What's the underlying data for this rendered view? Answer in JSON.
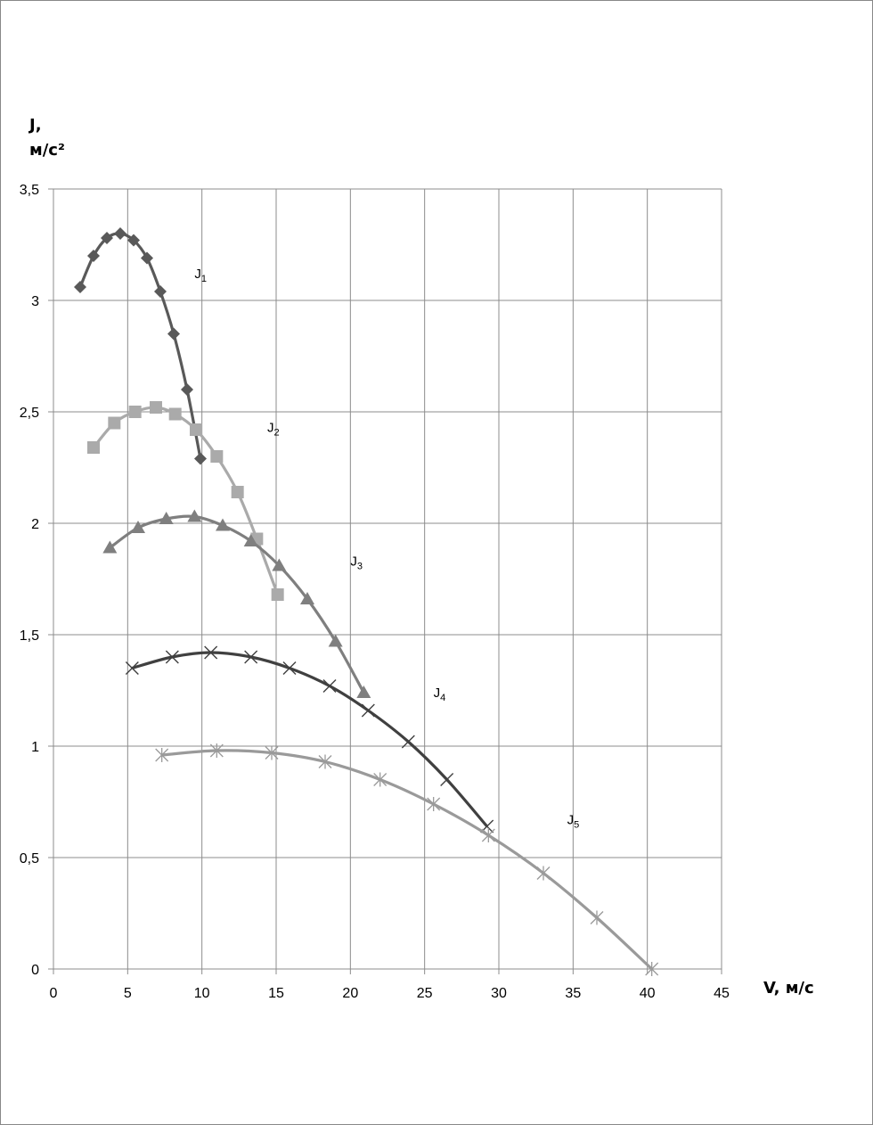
{
  "chart_data": {
    "type": "scatter",
    "title": "",
    "xlabel": "V, м/с",
    "ylabel_line1": "J,",
    "ylabel_line2": "м/с²",
    "xlim": [
      0,
      45
    ],
    "ylim": [
      0,
      3.5
    ],
    "x_ticks": [
      "0",
      "5",
      "10",
      "15",
      "20",
      "25",
      "30",
      "35",
      "40",
      "45"
    ],
    "y_ticks": [
      "0",
      "0,5",
      "1",
      "1,5",
      "2",
      "2,5",
      "3",
      "3,5"
    ],
    "grid": true,
    "legend": "inline labels",
    "series": [
      {
        "name": "J",
        "sub": "1",
        "marker": "diamond",
        "color": "#595959",
        "x": [
          1.8,
          2.7,
          3.6,
          4.5,
          5.4,
          6.3,
          7.2,
          8.1,
          9.0,
          9.9
        ],
        "y": [
          3.06,
          3.2,
          3.28,
          3.3,
          3.27,
          3.19,
          3.04,
          2.85,
          2.6,
          2.29
        ],
        "label_at": [
          9.5,
          3.1
        ]
      },
      {
        "name": "J",
        "sub": "2",
        "marker": "square",
        "color": "#aaaaaa",
        "x": [
          2.7,
          4.1,
          5.5,
          6.9,
          8.2,
          9.6,
          11.0,
          12.4,
          13.7,
          15.1
        ],
        "y": [
          2.34,
          2.45,
          2.5,
          2.52,
          2.49,
          2.42,
          2.3,
          2.14,
          1.93,
          1.68
        ],
        "label_at": [
          14.4,
          2.41
        ]
      },
      {
        "name": "J",
        "sub": "3",
        "marker": "triangle",
        "color": "#7f7f7f",
        "x": [
          3.8,
          5.7,
          7.6,
          9.5,
          11.4,
          13.3,
          15.2,
          17.1,
          19.0,
          20.9
        ],
        "y": [
          1.89,
          1.98,
          2.02,
          2.03,
          1.99,
          1.92,
          1.81,
          1.66,
          1.47,
          1.24
        ],
        "label_at": [
          20.0,
          1.81
        ]
      },
      {
        "name": "J",
        "sub": "4",
        "marker": "x",
        "color": "#404040",
        "x": [
          5.3,
          8.0,
          10.6,
          13.3,
          15.9,
          18.6,
          21.2,
          23.9,
          26.5,
          29.2
        ],
        "y": [
          1.35,
          1.4,
          1.42,
          1.4,
          1.35,
          1.27,
          1.16,
          1.02,
          0.85,
          0.64
        ],
        "label_at": [
          25.6,
          1.22
        ]
      },
      {
        "name": "J",
        "sub": "5",
        "marker": "asterisk",
        "color": "#9a9a9a",
        "x": [
          7.3,
          11.0,
          14.7,
          18.3,
          22.0,
          25.6,
          29.3,
          33.0,
          36.6,
          40.3
        ],
        "y": [
          0.96,
          0.98,
          0.97,
          0.93,
          0.85,
          0.74,
          0.6,
          0.43,
          0.23,
          0.0
        ],
        "label_at": [
          34.6,
          0.65
        ]
      }
    ]
  }
}
